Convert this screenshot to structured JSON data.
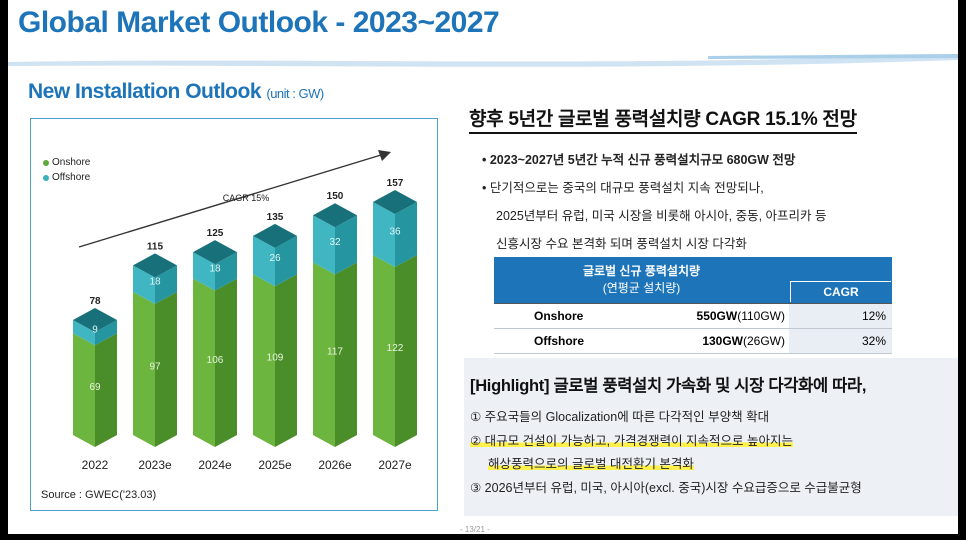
{
  "page": {
    "title": "Global Market Outlook - 2023~2027",
    "subtitle": "New Installation Outlook",
    "unit": "(unit : GW)",
    "source": "Source : GWEC('23.03)",
    "page_number": "- 13/21 -"
  },
  "chart_data": {
    "type": "bar",
    "stacked": true,
    "categories": [
      "2022",
      "2023e",
      "2024e",
      "2025e",
      "2026e",
      "2027e"
    ],
    "series": [
      {
        "name": "Onshore",
        "values": [
          69,
          97,
          106,
          109,
          117,
          122
        ]
      },
      {
        "name": "Offshore",
        "values": [
          9,
          18,
          18,
          26,
          32,
          36
        ]
      }
    ],
    "totals": [
      78,
      115,
      125,
      135,
      150,
      157
    ],
    "annotation": "CAGR 15%",
    "ylim": [
      0,
      160
    ],
    "legend_position": "top-left",
    "grid": false,
    "colors": {
      "onshore": "#5fa83a",
      "offshore": "#3ab0bd"
    }
  },
  "right": {
    "heading": "향후 5년간 글로벌 풍력설치량 CAGR 15.1% 전망",
    "bullet1": "• 2023~2027년 5년간 누적 신규 풍력설치규모 680GW 전망",
    "bullet2": "• 단기적으로는 중국의 대규모 풍력설치 지속 전망되나,",
    "bullet2_line2": "2025년부터 유럽, 미국 시장을 비롯해 아시아, 중동, 아프리카 등",
    "bullet2_line3": "신흥시장 수요 본격화 되며 풍력설치 시장 다각화"
  },
  "table": {
    "header_main": "글로벌 신규 풍력설치량",
    "header_sub": "(연평균 설치량)",
    "header_cagr": "CAGR",
    "rows": [
      {
        "name": "Onshore",
        "value": "550GW",
        "annual": "(110GW)",
        "cagr": "12%"
      },
      {
        "name": "Offshore",
        "value": "130GW",
        "annual": "(26GW)",
        "cagr": "32%"
      }
    ]
  },
  "highlight": {
    "title": "[Highlight] 글로벌 풍력설치 가속화 및 시장 다각화에 따라,",
    "item1": "① 주요국들의 Glocalization에 따른 다각적인 부양책 확대",
    "item2": "② 대규모 건설이 가능하고, 가격경쟁력이 지속적으로 높아지는",
    "item2_line2": "해상풍력으로의 글로벌 대전환기 본격화",
    "item3": "③ 2026년부터 유럽, 미국, 아시아(excl. 중국)시장 수요급증으로 수급불균형"
  }
}
